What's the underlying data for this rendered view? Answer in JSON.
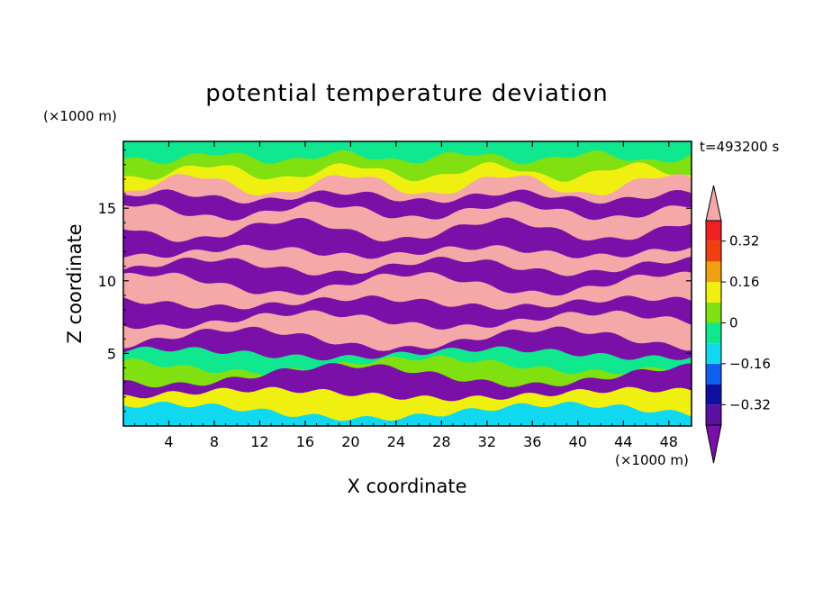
{
  "chart_data": {
    "type": "heatmap",
    "title": "potential temperature deviation",
    "xlabel": "X coordinate",
    "ylabel": "Z coordinate",
    "x_unit": "(×1000 m)",
    "y_unit": "(×1000 m)",
    "time_label": "t=493200 s",
    "xlim": [
      0,
      50
    ],
    "ylim": [
      0,
      19.6
    ],
    "x_ticks": [
      4,
      8,
      12,
      16,
      20,
      24,
      28,
      32,
      36,
      40,
      44,
      48
    ],
    "y_ticks": [
      5,
      10,
      15
    ],
    "x_tick_labels": [
      "4",
      "8",
      "12",
      "16",
      "20",
      "24",
      "28",
      "32",
      "36",
      "40",
      "44",
      "48"
    ],
    "y_tick_labels": [
      "5",
      "10",
      "15"
    ],
    "colorbar": {
      "levels": [
        -0.4,
        -0.32,
        -0.24,
        -0.16,
        -0.08,
        0,
        0.08,
        0.16,
        0.24,
        0.32,
        0.4
      ],
      "labeled_levels": [
        0.32,
        0.16,
        0,
        -0.16,
        -0.32
      ],
      "labels": [
        "0.32",
        "0.16",
        "0",
        "−0.16",
        "−0.32"
      ],
      "colors": [
        "#7a10a8",
        "#5a10a0",
        "#1010a0",
        "#1060f0",
        "#10d8f0",
        "#10e890",
        "#80e010",
        "#f0f010",
        "#f0a010",
        "#f04010",
        "#f02020",
        "#f4a8a8"
      ],
      "extend": "both"
    },
    "bands": [
      {
        "z": 18.5,
        "value": 0.04
      },
      {
        "z": 17.5,
        "value": 0.08
      },
      {
        "z": 16.6,
        "value": 0.45
      },
      {
        "z": 15.8,
        "value": -0.45
      },
      {
        "z": 14.8,
        "value": 0.45
      },
      {
        "z": 13.5,
        "value": -0.45
      },
      {
        "z": 12.0,
        "value": 0.45
      },
      {
        "z": 11.0,
        "value": -0.45
      },
      {
        "z": 9.8,
        "value": 0.45
      },
      {
        "z": 8.5,
        "value": -0.45
      },
      {
        "z": 7.3,
        "value": 0.45
      },
      {
        "z": 6.0,
        "value": -0.45
      },
      {
        "z": 5.0,
        "value": -0.05
      },
      {
        "z": 4.2,
        "value": 0.0
      },
      {
        "z": 3.5,
        "value": -0.45
      },
      {
        "z": 2.2,
        "value": 0.12
      },
      {
        "z": 1.0,
        "value": -0.1
      }
    ]
  }
}
